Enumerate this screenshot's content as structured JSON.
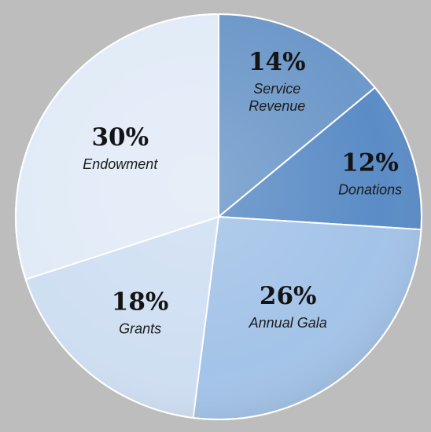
{
  "chart_data": {
    "type": "pie",
    "categories": [
      "Service Revenue",
      "Donations",
      "Annual Gala",
      "Grants",
      "Endowment"
    ],
    "values": [
      14,
      12,
      26,
      18,
      30
    ],
    "value_labels": [
      "14%",
      "12%",
      "26%",
      "18%",
      "30%"
    ],
    "label_lines": [
      [
        "Service",
        "Revenue"
      ],
      [
        "Donations"
      ],
      [
        "Annual Gala"
      ],
      [
        "Grants"
      ],
      [
        "Endowment"
      ]
    ],
    "colors": [
      "#6d98c9",
      "#5b8cc6",
      "#a3c3e8",
      "#cfdff2",
      "#e1ebf7"
    ],
    "start": "12 o'clock, clockwise",
    "legend": "none"
  }
}
